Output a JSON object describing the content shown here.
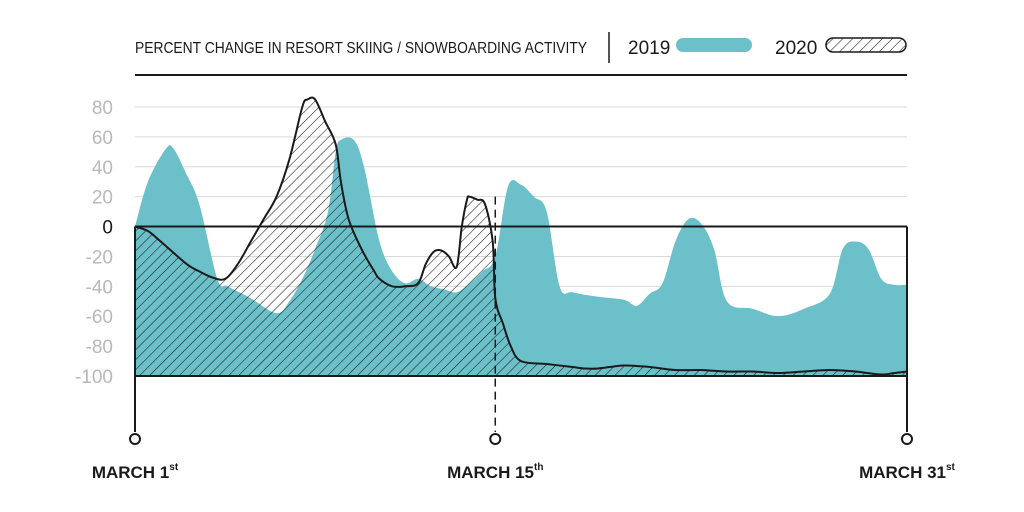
{
  "chart_data": {
    "type": "area",
    "title": "PERCENT CHANGE IN RESORT SKIING / SNOWBOARDING ACTIVITY",
    "xlabel": "",
    "ylabel": "",
    "ylim": [
      -100,
      80
    ],
    "yticks": [
      "80",
      "60",
      "40",
      "20",
      "0",
      "-20",
      "-40",
      "-60",
      "-80",
      "-100"
    ],
    "xlim": [
      1,
      31
    ],
    "x_markers": [
      {
        "day": 1,
        "label": "MARCH 1",
        "suffix": "st"
      },
      {
        "day": 15,
        "label": "MARCH 15",
        "suffix": "th"
      },
      {
        "day": 31,
        "label": "MARCH 31",
        "suffix": "st"
      }
    ],
    "grid": true,
    "legend_position": "top-right",
    "colors": {
      "series_2019": "#6cc0c9",
      "series_2020_stroke": "#1a1a1a",
      "grid": "#d9d9d9",
      "ticks": "#b9b9b9"
    },
    "series": [
      {
        "name": "2019",
        "style": "solid-fill",
        "x": [
          1.0,
          1.5,
          2.2,
          2.5,
          3.0,
          3.5,
          4.2,
          4.6,
          5.5,
          6.5,
          7.0,
          7.5,
          8.0,
          8.5,
          8.8,
          9.0,
          9.5,
          9.9,
          10.5,
          11.0,
          11.5,
          12.0,
          12.5,
          13.0,
          13.5,
          14.0,
          14.5,
          15.0,
          15.5,
          16.0,
          16.5,
          17.0,
          17.5,
          18.0,
          19.0,
          20.0,
          20.5,
          21.0,
          21.5,
          22.0,
          22.5,
          23.0,
          23.5,
          24.0,
          25.0,
          26.0,
          27.0,
          28.0,
          28.5,
          29.0,
          29.5,
          30.0,
          30.5,
          31.0
        ],
        "y": [
          0,
          30,
          52,
          52,
          35,
          15,
          -35,
          -40,
          -48,
          -58,
          -50,
          -35,
          -15,
          10,
          50,
          58,
          58,
          40,
          -10,
          -30,
          -38,
          -35,
          -40,
          -42,
          -44,
          -38,
          -30,
          -20,
          27,
          28,
          20,
          10,
          -40,
          -44,
          -47,
          -49,
          -53,
          -45,
          -38,
          -10,
          5,
          2,
          -15,
          -50,
          -55,
          -60,
          -55,
          -45,
          -15,
          -10,
          -15,
          -35,
          -39,
          -39
        ]
      },
      {
        "name": "2020",
        "style": "hatched-fill",
        "x": [
          1.0,
          1.5,
          2.0,
          3.0,
          3.5,
          4.0,
          4.5,
          5.0,
          5.5,
          6.0,
          6.5,
          7.0,
          7.5,
          7.7,
          8.0,
          8.4,
          8.8,
          9.0,
          9.3,
          9.8,
          10.3,
          10.5,
          11.0,
          11.5,
          12.0,
          12.3,
          12.6,
          12.9,
          13.2,
          13.5,
          13.7,
          13.9,
          14.0,
          14.3,
          14.6,
          14.9,
          15.0,
          15.3,
          15.6,
          16.0,
          17.0,
          18.0,
          18.5,
          19.0,
          20.0,
          21.0,
          22.0,
          23.0,
          24.0,
          25.0,
          26.0,
          27.0,
          28.0,
          29.0,
          30.0,
          30.5,
          31.0
        ],
        "y": [
          0,
          -3,
          -10,
          -25,
          -30,
          -34,
          -35,
          -25,
          -10,
          5,
          20,
          45,
          80,
          85,
          85,
          70,
          55,
          30,
          5,
          -15,
          -30,
          -35,
          -40,
          -40,
          -38,
          -25,
          -17,
          -16,
          -20,
          -27,
          0,
          18,
          20,
          18,
          15,
          -10,
          -48,
          -65,
          -80,
          -90,
          -92,
          -94,
          -95,
          -95,
          -93,
          -94,
          -96,
          -96,
          -97,
          -97,
          -98,
          -97,
          -96,
          -97,
          -99,
          -98,
          -97
        ]
      }
    ]
  }
}
